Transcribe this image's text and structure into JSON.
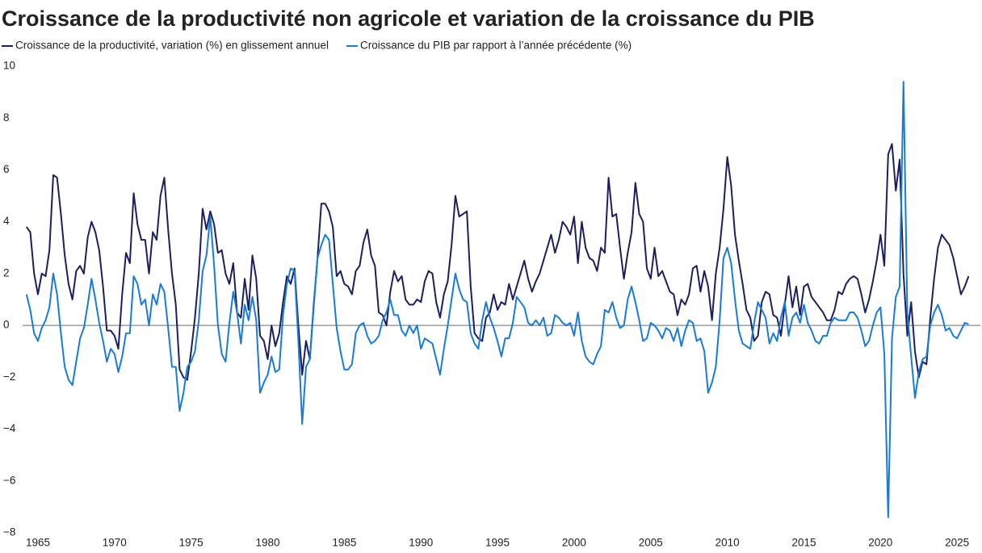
{
  "chart_data": {
    "type": "line",
    "title": "Croissance de la productivité non agricole et variation de la croissance du PIB",
    "x": [
      1964.25,
      1964.5,
      1964.75,
      1965,
      1965.25,
      1965.5,
      1965.75,
      1966,
      1966.25,
      1966.5,
      1966.75,
      1967,
      1967.25,
      1967.5,
      1967.75,
      1968,
      1968.25,
      1968.5,
      1968.75,
      1969,
      1969.25,
      1969.5,
      1969.75,
      1970,
      1970.25,
      1970.5,
      1970.75,
      1971,
      1971.25,
      1971.5,
      1971.75,
      1972,
      1972.25,
      1972.5,
      1972.75,
      1973,
      1973.25,
      1973.5,
      1973.75,
      1974,
      1974.25,
      1974.5,
      1974.75,
      1975,
      1975.25,
      1975.5,
      1975.75,
      1976,
      1976.25,
      1976.5,
      1976.75,
      1977,
      1977.25,
      1977.5,
      1977.75,
      1978,
      1978.25,
      1978.5,
      1978.75,
      1979,
      1979.25,
      1979.5,
      1979.75,
      1980,
      1980.25,
      1980.5,
      1980.75,
      1981,
      1981.25,
      1981.5,
      1981.75,
      1982,
      1982.25,
      1982.5,
      1982.75,
      1983,
      1983.25,
      1983.5,
      1983.75,
      1984,
      1984.25,
      1984.5,
      1984.75,
      1985,
      1985.25,
      1985.5,
      1985.75,
      1986,
      1986.25,
      1986.5,
      1986.75,
      1987,
      1987.25,
      1987.5,
      1987.75,
      1988,
      1988.25,
      1988.5,
      1988.75,
      1989,
      1989.25,
      1989.5,
      1989.75,
      1990,
      1990.25,
      1990.5,
      1990.75,
      1991,
      1991.25,
      1991.5,
      1991.75,
      1992,
      1992.25,
      1992.5,
      1992.75,
      1993,
      1993.25,
      1993.5,
      1993.75,
      1994,
      1994.25,
      1994.5,
      1994.75,
      1995,
      1995.25,
      1995.5,
      1995.75,
      1996,
      1996.25,
      1996.5,
      1996.75,
      1997,
      1997.25,
      1997.5,
      1997.75,
      1998,
      1998.25,
      1998.5,
      1998.75,
      1999,
      1999.25,
      1999.5,
      1999.75,
      2000,
      2000.25,
      2000.5,
      2000.75,
      2001,
      2001.25,
      2001.5,
      2001.75,
      2002,
      2002.25,
      2002.5,
      2002.75,
      2003,
      2003.25,
      2003.5,
      2003.75,
      2004,
      2004.25,
      2004.5,
      2004.75,
      2005,
      2005.25,
      2005.5,
      2005.75,
      2006,
      2006.25,
      2006.5,
      2006.75,
      2007,
      2007.25,
      2007.5,
      2007.75,
      2008,
      2008.25,
      2008.5,
      2008.75,
      2009,
      2009.25,
      2009.5,
      2009.75,
      2010,
      2010.25,
      2010.5,
      2010.75,
      2011,
      2011.25,
      2011.5,
      2011.75,
      2012,
      2012.25,
      2012.5,
      2012.75,
      2013,
      2013.25,
      2013.5,
      2013.75,
      2014,
      2014.25,
      2014.5,
      2014.75,
      2015,
      2015.25,
      2015.5,
      2015.75,
      2016,
      2016.25,
      2016.5,
      2016.75,
      2017,
      2017.25,
      2017.5,
      2017.75,
      2018,
      2018.25,
      2018.5,
      2018.75,
      2019,
      2019.25,
      2019.5,
      2019.75,
      2020,
      2020.25,
      2020.5,
      2020.75,
      2021,
      2021.25,
      2021.5,
      2021.75,
      2022,
      2022.25,
      2022.5,
      2022.75,
      2023,
      2023.25,
      2023.5,
      2023.75,
      2024,
      2024.25,
      2024.5,
      2024.75,
      2025,
      2025.25,
      2025.5,
      2025.75
    ],
    "series": [
      {
        "name": "Croissance de la productivité, variation (%) en glissement annuel",
        "color": "#1b1f5e",
        "values": [
          3.8,
          3.6,
          2.0,
          1.2,
          2.0,
          1.9,
          2.9,
          5.8,
          5.7,
          4.3,
          2.7,
          1.6,
          1.0,
          2.1,
          2.3,
          2.0,
          3.4,
          4.0,
          3.6,
          2.9,
          1.5,
          -0.2,
          -0.2,
          -0.4,
          -0.9,
          1.2,
          2.8,
          2.4,
          5.1,
          3.9,
          3.3,
          3.3,
          2.0,
          3.6,
          3.3,
          5.0,
          5.7,
          3.7,
          2.0,
          0.8,
          -1.7,
          -2.0,
          -2.1,
          -1.0,
          0.3,
          2.0,
          4.5,
          3.7,
          4.4,
          3.9,
          2.8,
          2.9,
          2.0,
          1.6,
          2.4,
          0.5,
          0.3,
          1.8,
          0.6,
          2.7,
          1.8,
          -0.4,
          -0.6,
          -1.3,
          0.0,
          -0.8,
          -0.3,
          0.9,
          1.9,
          1.6,
          2.2,
          0.0,
          -1.9,
          -0.6,
          -1.3,
          0.8,
          2.6,
          4.7,
          4.7,
          4.4,
          3.8,
          1.9,
          2.1,
          1.6,
          1.5,
          1.2,
          2.1,
          2.3,
          3.2,
          3.7,
          2.7,
          2.3,
          0.5,
          0.4,
          0.0,
          1.3,
          2.1,
          1.7,
          1.9,
          1.0,
          0.8,
          0.8,
          1.0,
          0.9,
          1.7,
          2.1,
          2.0,
          0.9,
          0.3,
          1.2,
          1.7,
          3.1,
          5.0,
          4.2,
          4.3,
          4.4,
          1.5,
          -0.3,
          -0.5,
          -0.6,
          0.3,
          0.5,
          1.2,
          0.6,
          0.9,
          0.8,
          1.6,
          1.0,
          1.5,
          2.0,
          2.5,
          1.8,
          1.3,
          1.7,
          2.0,
          2.5,
          3.0,
          3.5,
          2.8,
          3.3,
          4.0,
          3.8,
          3.5,
          4.2,
          2.4,
          4.0,
          3.0,
          2.6,
          2.5,
          2.1,
          3.0,
          2.8,
          5.7,
          4.2,
          4.3,
          3.0,
          1.8,
          2.8,
          3.6,
          5.5,
          4.3,
          4.0,
          2.2,
          1.8,
          3.0,
          1.9,
          2.1,
          1.7,
          1.3,
          1.2,
          0.4,
          1.0,
          0.8,
          1.2,
          2.2,
          2.3,
          1.3,
          2.1,
          1.5,
          0.2,
          2.0,
          3.0,
          4.5,
          6.5,
          5.4,
          3.5,
          2.5,
          1.6,
          0.6,
          0.3,
          -0.6,
          -0.4,
          0.9,
          1.3,
          1.2,
          0.4,
          0.3,
          -0.4,
          0.8,
          1.9,
          0.7,
          1.5,
          0.4,
          1.5,
          1.6,
          1.1,
          0.9,
          0.7,
          0.5,
          0.2,
          0.2,
          0.6,
          1.3,
          1.2,
          1.6,
          1.8,
          1.9,
          1.8,
          1.2,
          0.5,
          1.0,
          1.7,
          2.5,
          3.5,
          2.3,
          6.6,
          7.0,
          5.2,
          6.4,
          2.0,
          -0.4,
          0.9,
          -1.0,
          -2.0,
          -1.4,
          -1.5,
          0.3,
          1.8,
          3.0,
          3.5,
          3.3,
          3.1,
          2.6,
          1.9,
          1.2,
          1.5,
          1.9
        ]
      },
      {
        "name": "Croissance du PIB par rapport à l’année précédente (%)",
        "color": "#1a7bd6",
        "values": [
          1.2,
          0.6,
          -0.3,
          -0.6,
          -0.1,
          0.2,
          0.7,
          2.0,
          1.2,
          -0.3,
          -1.6,
          -2.1,
          -2.3,
          -1.4,
          -0.5,
          -0.1,
          0.8,
          1.8,
          1.0,
          0.1,
          -0.6,
          -1.4,
          -0.9,
          -1.1,
          -1.8,
          -1.2,
          -0.3,
          -0.3,
          1.9,
          1.6,
          0.8,
          1.0,
          0.0,
          1.2,
          0.8,
          1.6,
          1.3,
          -0.1,
          -1.6,
          -1.6,
          -3.3,
          -2.6,
          -1.6,
          -1.4,
          -1.0,
          0.2,
          2.1,
          2.7,
          4.2,
          2.3,
          0.0,
          -1.1,
          -1.4,
          0.1,
          1.3,
          0.5,
          -0.7,
          0.8,
          0.2,
          1.1,
          0.2,
          -2.6,
          -2.2,
          -1.9,
          -1.2,
          -1.8,
          -1.7,
          0.4,
          1.6,
          2.2,
          2.1,
          -0.6,
          -3.8,
          -1.6,
          -1.3,
          0.7,
          2.6,
          3.1,
          3.5,
          3.3,
          1.6,
          -0.1,
          -1.0,
          -1.7,
          -1.7,
          -1.5,
          -0.3,
          0.0,
          0.1,
          -0.4,
          -0.7,
          -0.6,
          -0.4,
          0.2,
          0.5,
          1.0,
          0.4,
          0.4,
          -0.2,
          -0.4,
          0.0,
          -0.3,
          0.0,
          -0.9,
          -0.5,
          -0.6,
          -0.7,
          -1.3,
          -1.9,
          -0.9,
          0.0,
          1.0,
          2.0,
          1.4,
          1.0,
          0.9,
          -0.3,
          -0.7,
          -0.9,
          0.2,
          0.9,
          0.3,
          -0.1,
          -0.6,
          -1.2,
          -0.5,
          -0.5,
          0.1,
          1.1,
          0.9,
          0.7,
          0.1,
          0.0,
          0.2,
          0.0,
          0.3,
          -0.4,
          -0.3,
          0.4,
          0.3,
          0.1,
          0.0,
          0.1,
          -0.4,
          0.5,
          -0.6,
          -1.2,
          -1.4,
          -1.5,
          -1.1,
          -0.8,
          0.6,
          0.5,
          0.9,
          0.3,
          -0.1,
          0.0,
          1.0,
          1.5,
          0.9,
          0.2,
          -0.6,
          -0.5,
          0.1,
          0.0,
          -0.2,
          -0.5,
          -0.1,
          -0.2,
          -0.6,
          -0.1,
          -0.8,
          -0.2,
          0.2,
          0.1,
          -0.6,
          -0.5,
          -1.0,
          -2.6,
          -2.2,
          -1.6,
          0.2,
          2.6,
          3.0,
          2.4,
          1.0,
          -0.2,
          -0.7,
          -0.8,
          -0.9,
          0.1,
          0.9,
          0.6,
          0.3,
          -0.7,
          -0.3,
          -0.6,
          0.3,
          0.9,
          -0.4,
          0.3,
          0.5,
          0.1,
          0.8,
          0.1,
          -0.2,
          -0.6,
          -0.7,
          -0.4,
          -0.4,
          0.1,
          0.3,
          0.2,
          0.2,
          0.2,
          0.5,
          0.5,
          0.3,
          -0.2,
          -0.8,
          -0.6,
          0.0,
          0.5,
          0.7,
          -1.1,
          -7.4,
          -0.5,
          1.1,
          1.5,
          9.4,
          0.5,
          -1.2,
          -2.8,
          -1.8,
          -1.3,
          -1.2,
          0.0,
          0.5,
          0.8,
          0.4,
          -0.2,
          -0.1,
          -0.4,
          -0.5,
          -0.2,
          0.1,
          0.05
        ]
      }
    ],
    "xlim": [
      1964,
      2026.1
    ],
    "xticks": [
      1965,
      1970,
      1975,
      1980,
      1985,
      1990,
      1995,
      2000,
      2005,
      2010,
      2015,
      2020,
      2025
    ],
    "ylim": [
      -8,
      10
    ],
    "yticks": [
      10,
      8,
      6,
      4,
      2,
      0,
      {
        "value": -2,
        "label": "−2"
      },
      {
        "value": -4,
        "label": "−4"
      },
      {
        "value": -6,
        "label": "−6"
      },
      {
        "value": -8,
        "label": "−8"
      }
    ],
    "zero_line": true,
    "zero_line_color": "#8a8a8a",
    "grid": false,
    "legend": "top-left"
  }
}
